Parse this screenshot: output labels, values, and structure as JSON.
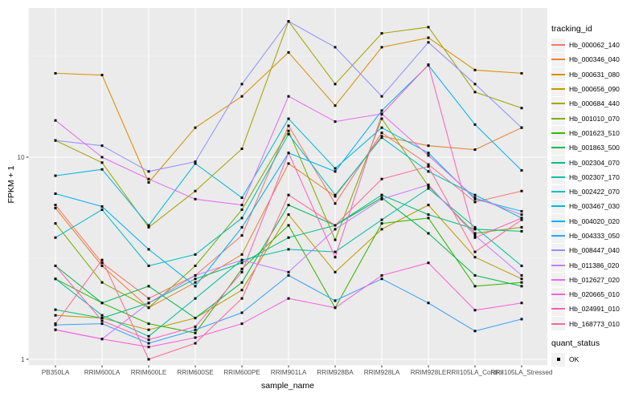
{
  "chart_data": {
    "type": "line",
    "title": "",
    "xlabel": "sample_name",
    "ylabel": "FPKM + 1",
    "y_scale": "log10",
    "y_tick_values": [
      10,
      1
    ],
    "y_tick_labels": [
      "10",
      "1"
    ],
    "y_minor_values": [
      31.62,
      3.162
    ],
    "ylim": [
      0.93,
      55
    ],
    "grid": true,
    "panel_bg": "#EBEBEB",
    "grid_color": "#FFFFFF",
    "legend_position": "right",
    "legend_title": "tracking_id",
    "shape_legend": {
      "title": "quant_status",
      "label": "OK",
      "marker": "black-square"
    },
    "categories": [
      "PB350LA",
      "RRIM600LA",
      "RRIM600LE",
      "RRIM600SE",
      "RRIM600PE",
      "RRIM901LA",
      "RRIM928BA",
      "RRIM928LA",
      "RRIM928LE",
      "RRII105LA_Control",
      "RRII105LA_Stressed"
    ],
    "series": [
      {
        "name": "Hb_000062_140",
        "color": "#F8766D",
        "values": [
          5.8,
          3.0,
          2.0,
          2.6,
          4.1,
          14.3,
          5.9,
          13.2,
          9.2,
          6.0,
          6.8
        ]
      },
      {
        "name": "Hb_000346_040",
        "color": "#EA8331",
        "values": [
          5.6,
          2.9,
          1.8,
          2.4,
          3.3,
          9.3,
          6.4,
          12.7,
          11.4,
          10.9,
          14.0
        ]
      },
      {
        "name": "Hb_000631_080",
        "color": "#D89000",
        "values": [
          26.0,
          25.5,
          7.5,
          14.0,
          20.0,
          33.0,
          18.0,
          35.0,
          39.0,
          27.0,
          26.0
        ]
      },
      {
        "name": "Hb_000656_090",
        "color": "#C09B00",
        "values": [
          1.65,
          1.6,
          1.4,
          1.6,
          2.2,
          5.2,
          2.7,
          4.4,
          5.8,
          3.2,
          2.5
        ]
      },
      {
        "name": "Hb_000684_440",
        "color": "#A3A500",
        "values": [
          12.1,
          9.4,
          4.5,
          6.8,
          11.0,
          47.0,
          23.0,
          41.0,
          44.0,
          21.0,
          17.5
        ]
      },
      {
        "name": "Hb_001010_070",
        "color": "#7CAE00",
        "values": [
          4.7,
          2.4,
          1.8,
          2.9,
          5.5,
          13.5,
          3.9,
          15.5,
          7.2,
          4.2,
          4.5
        ]
      },
      {
        "name": "Hb_001623_510",
        "color": "#39B600",
        "values": [
          2.5,
          1.9,
          1.5,
          1.35,
          2.8,
          4.6,
          1.8,
          4.7,
          5.0,
          2.3,
          2.4
        ]
      },
      {
        "name": "Hb_001863_500",
        "color": "#00BB4E",
        "values": [
          2.9,
          1.9,
          2.3,
          1.6,
          2.4,
          5.8,
          4.6,
          6.3,
          4.2,
          2.6,
          2.3
        ]
      },
      {
        "name": "Hb_002304_070",
        "color": "#00BF7D",
        "values": [
          1.76,
          1.6,
          1.9,
          2.5,
          3.0,
          4.0,
          4.6,
          6.5,
          5.2,
          4.4,
          4.3
        ]
      },
      {
        "name": "Hb_002307_170",
        "color": "#00C1A3",
        "values": [
          2.5,
          1.65,
          1.3,
          2.0,
          3.1,
          3.5,
          3.4,
          4.9,
          7.0,
          4.5,
          2.9
        ]
      },
      {
        "name": "Hb_002422_070",
        "color": "#00BFC4",
        "values": [
          4.0,
          5.5,
          2.9,
          3.3,
          5.0,
          13.0,
          6.5,
          12.5,
          8.5,
          6.5,
          5.0
        ]
      },
      {
        "name": "Hb_003467_030",
        "color": "#00BAE0",
        "values": [
          8.1,
          8.7,
          4.6,
          9.3,
          6.3,
          15.5,
          8.8,
          14.0,
          10.5,
          6.2,
          5.4
        ]
      },
      {
        "name": "Hb_004020_020",
        "color": "#00B0F6",
        "values": [
          6.6,
          5.7,
          3.5,
          2.3,
          4.5,
          10.5,
          8.5,
          17.0,
          28.5,
          14.5,
          8.6
        ]
      },
      {
        "name": "Hb_004333_050",
        "color": "#35A2FF",
        "values": [
          1.48,
          1.5,
          1.2,
          1.4,
          1.7,
          2.6,
          1.95,
          2.5,
          1.9,
          1.38,
          1.58
        ]
      },
      {
        "name": "Hb_008447_040",
        "color": "#9590FF",
        "values": [
          12.1,
          11.4,
          8.5,
          9.5,
          23.0,
          47.0,
          35.0,
          20.0,
          37.0,
          23.0,
          14.0
        ]
      },
      {
        "name": "Hb_011386_020",
        "color": "#C77CFF",
        "values": [
          1.4,
          1.26,
          1.9,
          2.6,
          3.1,
          2.7,
          4.4,
          6.2,
          7.3,
          4.1,
          2.6
        ]
      },
      {
        "name": "Hb_012627_020",
        "color": "#E76BF3",
        "values": [
          15.2,
          10.0,
          7.8,
          6.2,
          5.8,
          20.0,
          15.0,
          16.4,
          10.2,
          6.3,
          5.2
        ]
      },
      {
        "name": "Hb_020665_010",
        "color": "#FA62DB",
        "values": [
          1.4,
          1.26,
          1.15,
          1.28,
          1.5,
          2.0,
          1.8,
          2.6,
          3.0,
          1.75,
          1.9
        ]
      },
      {
        "name": "Hb_024991_010",
        "color": "#FF62BC",
        "values": [
          2.9,
          1.55,
          1.25,
          1.45,
          2.7,
          10.5,
          3.2,
          16.3,
          28.7,
          4.0,
          5.0
        ]
      },
      {
        "name": "Hb_168773_010",
        "color": "#FF6A98",
        "values": [
          1.5,
          3.1,
          1.0,
          1.2,
          2.0,
          6.5,
          4.6,
          7.8,
          9.0,
          3.4,
          4.9
        ]
      }
    ]
  }
}
